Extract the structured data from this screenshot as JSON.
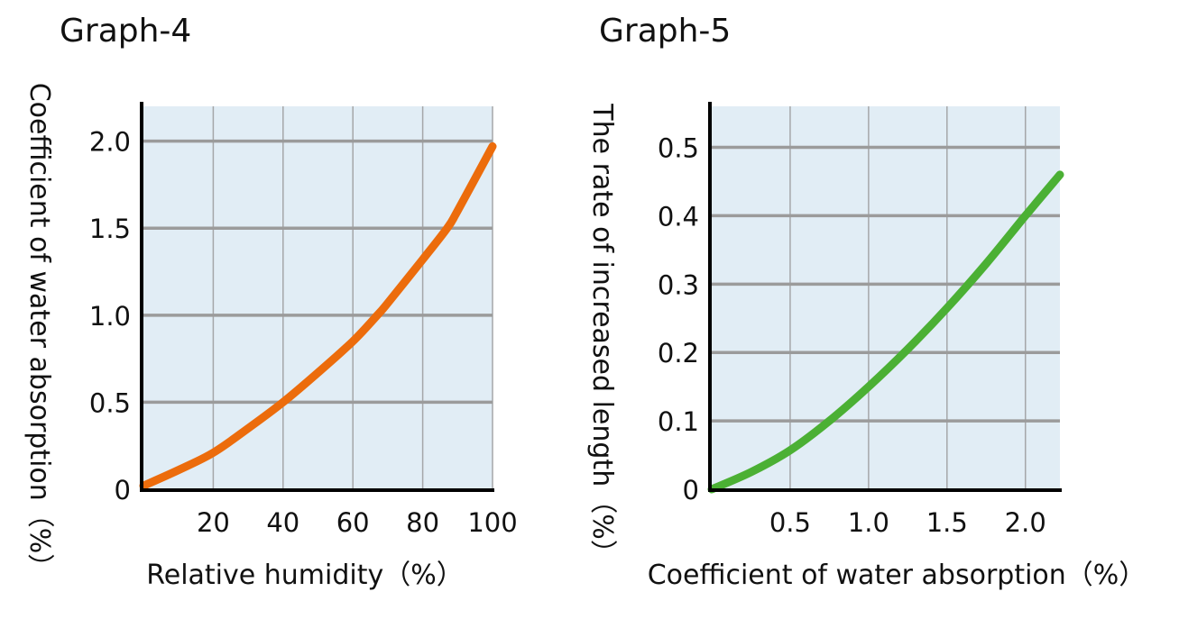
{
  "chart_data": [
    {
      "type": "line",
      "title": "Graph-4",
      "xlabel": "Relative humidity（%）",
      "ylabel": "Coefficient of water absorption（%）",
      "xlim": [
        0,
        100
      ],
      "ylim": [
        0,
        2.2
      ],
      "xticks": [
        "20",
        "40",
        "60",
        "80",
        "100"
      ],
      "xtick_values": [
        20,
        40,
        60,
        80,
        100
      ],
      "yticks": [
        "0",
        "0.5",
        "1.0",
        "1.5",
        "2.0"
      ],
      "ytick_values": [
        0,
        0.5,
        1.0,
        1.5,
        2.0
      ],
      "grid": true,
      "background": "#e1edf5",
      "series": [
        {
          "color": "#ec6c0c",
          "x": [
            0,
            10,
            20,
            30,
            40,
            50,
            60,
            67,
            70,
            80,
            87,
            90,
            100
          ],
          "y": [
            0.02,
            0.11,
            0.21,
            0.35,
            0.5,
            0.67,
            0.85,
            1.0,
            1.07,
            1.32,
            1.5,
            1.6,
            1.97
          ]
        }
      ]
    },
    {
      "type": "line",
      "title": "Graph-5",
      "xlabel": "Coefficient of water absorption（%）",
      "ylabel": "The rate of increased length（%）",
      "xlim": [
        0,
        2.22
      ],
      "ylim": [
        0,
        0.56
      ],
      "xticks": [
        "0.5",
        "1.0",
        "1.5",
        "2.0"
      ],
      "xtick_values": [
        0.5,
        1.0,
        1.5,
        2.0
      ],
      "yticks": [
        "0",
        "0.1",
        "0.2",
        "0.3",
        "0.4",
        "0.5"
      ],
      "ytick_values": [
        0,
        0.1,
        0.2,
        0.3,
        0.4,
        0.5
      ],
      "grid": true,
      "background": "#e1edf5",
      "series": [
        {
          "color": "#4bb034",
          "x": [
            0,
            0.25,
            0.5,
            0.75,
            1.0,
            1.25,
            1.5,
            1.75,
            2.0,
            2.22
          ],
          "y": [
            0.0,
            0.025,
            0.057,
            0.1,
            0.15,
            0.205,
            0.265,
            0.33,
            0.4,
            0.46
          ]
        }
      ]
    }
  ]
}
